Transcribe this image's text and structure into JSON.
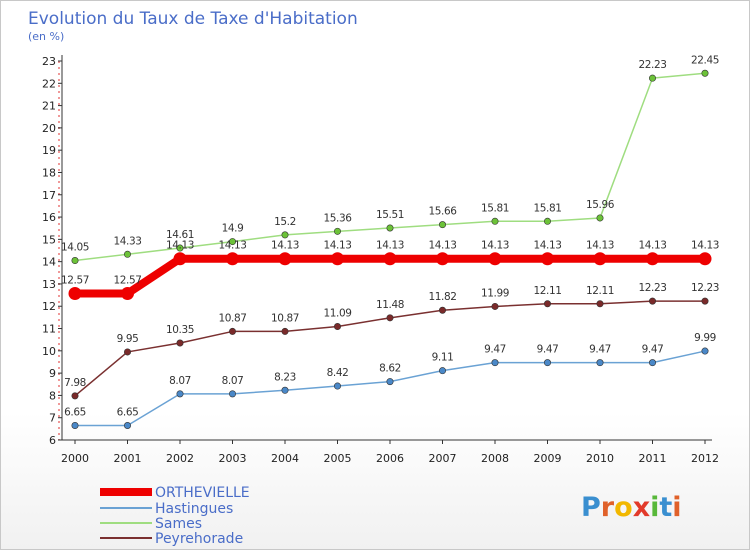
{
  "chart_data": {
    "type": "line",
    "title": "Evolution du Taux de Taxe d'Habitation",
    "subtitle": "(en %)",
    "x": [
      "2000",
      "2001",
      "2002",
      "2003",
      "2004",
      "2005",
      "2006",
      "2007",
      "2008",
      "2009",
      "2010",
      "2011",
      "2012"
    ],
    "ylim": [
      6,
      23
    ],
    "yticks": [
      6,
      7,
      8,
      9,
      10,
      11,
      12,
      13,
      14,
      15,
      16,
      17,
      18,
      19,
      20,
      21,
      22,
      23
    ],
    "grid": false,
    "legend_position": "bottom-left",
    "series": [
      {
        "name": "ORTHEVIELLE",
        "color": "#ee0000",
        "values": [
          12.57,
          12.57,
          14.13,
          14.13,
          14.13,
          14.13,
          14.13,
          14.13,
          14.13,
          14.13,
          14.13,
          14.13,
          14.13
        ],
        "labels": [
          "12.57",
          "12.57",
          "14.13",
          "14.13",
          "14.13",
          "14.13",
          "14.13",
          "14.13",
          "14.13",
          "14.13",
          "14.13",
          "14.13",
          "14.13"
        ]
      },
      {
        "name": "Hastingues",
        "color": "#6aa2d4",
        "marker": "#4a88c8",
        "values": [
          6.65,
          6.65,
          8.07,
          8.07,
          8.23,
          8.42,
          8.62,
          9.11,
          9.47,
          9.47,
          9.47,
          9.47,
          9.99
        ],
        "labels": [
          "6.65",
          "6.65",
          "8.07",
          "8.07",
          "8.23",
          "8.42",
          "8.62",
          "9.11",
          "9.47",
          "9.47",
          "9.47",
          "9.47",
          "9.99"
        ]
      },
      {
        "name": "Sames",
        "color": "#9fdd80",
        "marker": "#6cc238",
        "values": [
          14.05,
          14.33,
          14.61,
          14.9,
          15.2,
          15.36,
          15.51,
          15.66,
          15.81,
          15.81,
          15.96,
          22.23,
          22.45
        ],
        "labels": [
          "14.05",
          "14.33",
          "14.61",
          "14.9",
          "15.2",
          "15.36",
          "15.51",
          "15.66",
          "15.81",
          "15.81",
          "15.96",
          "22.23",
          "22.45"
        ]
      },
      {
        "name": "Peyrehorade",
        "color": "#7a3030",
        "marker": "#7a2a2a",
        "values": [
          7.98,
          9.95,
          10.35,
          10.87,
          10.87,
          11.09,
          11.48,
          11.82,
          11.99,
          12.11,
          12.11,
          12.23,
          12.23
        ],
        "labels": [
          "7.98",
          "9.95",
          "10.35",
          "10.87",
          "10.87",
          "11.09",
          "11.48",
          "11.82",
          "11.99",
          "12.11",
          "12.11",
          "12.23",
          "12.23"
        ]
      }
    ]
  },
  "logo": {
    "letters": [
      "P",
      "r",
      "o",
      "x",
      "i",
      "t",
      "i"
    ],
    "colors": [
      "#3a8fd0",
      "#e0612a",
      "#f2b800",
      "#e23a2a",
      "#58b83a",
      "#3a8fd0",
      "#e0612a"
    ]
  }
}
